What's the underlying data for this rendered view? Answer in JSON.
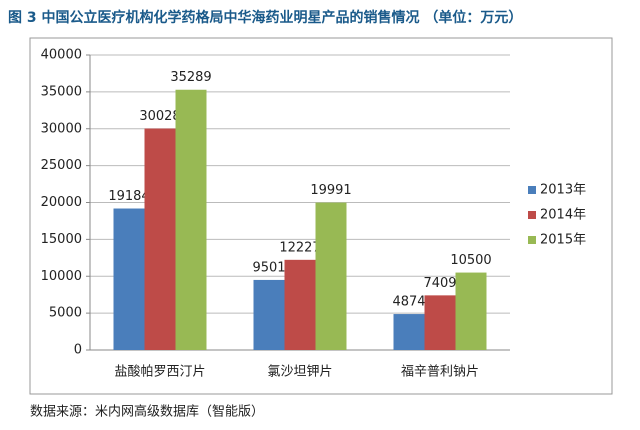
{
  "chart_data": {
    "type": "bar",
    "title": "图 3  中国公立医疗机构化学药格局中华海药业明星产品的销售情况  （单位：万元）",
    "source": "数据来源：米内网高级数据库（智能版）",
    "categories": [
      "盐酸帕罗西汀片",
      "氯沙坦钾片",
      "福辛普利钠片"
    ],
    "series": [
      {
        "name": "2013年",
        "color": "#4a7ebb",
        "values": [
          19184,
          9501,
          4874
        ]
      },
      {
        "name": "2014年",
        "color": "#be4b48",
        "values": [
          30028,
          12227,
          7409
        ]
      },
      {
        "name": "2015年",
        "color": "#98b954",
        "values": [
          35289,
          19991,
          10500
        ]
      }
    ],
    "ylim": [
      0,
      40000
    ],
    "yticks": [
      0,
      5000,
      10000,
      15000,
      20000,
      25000,
      30000,
      35000,
      40000
    ],
    "grid": true,
    "legend": "right"
  }
}
